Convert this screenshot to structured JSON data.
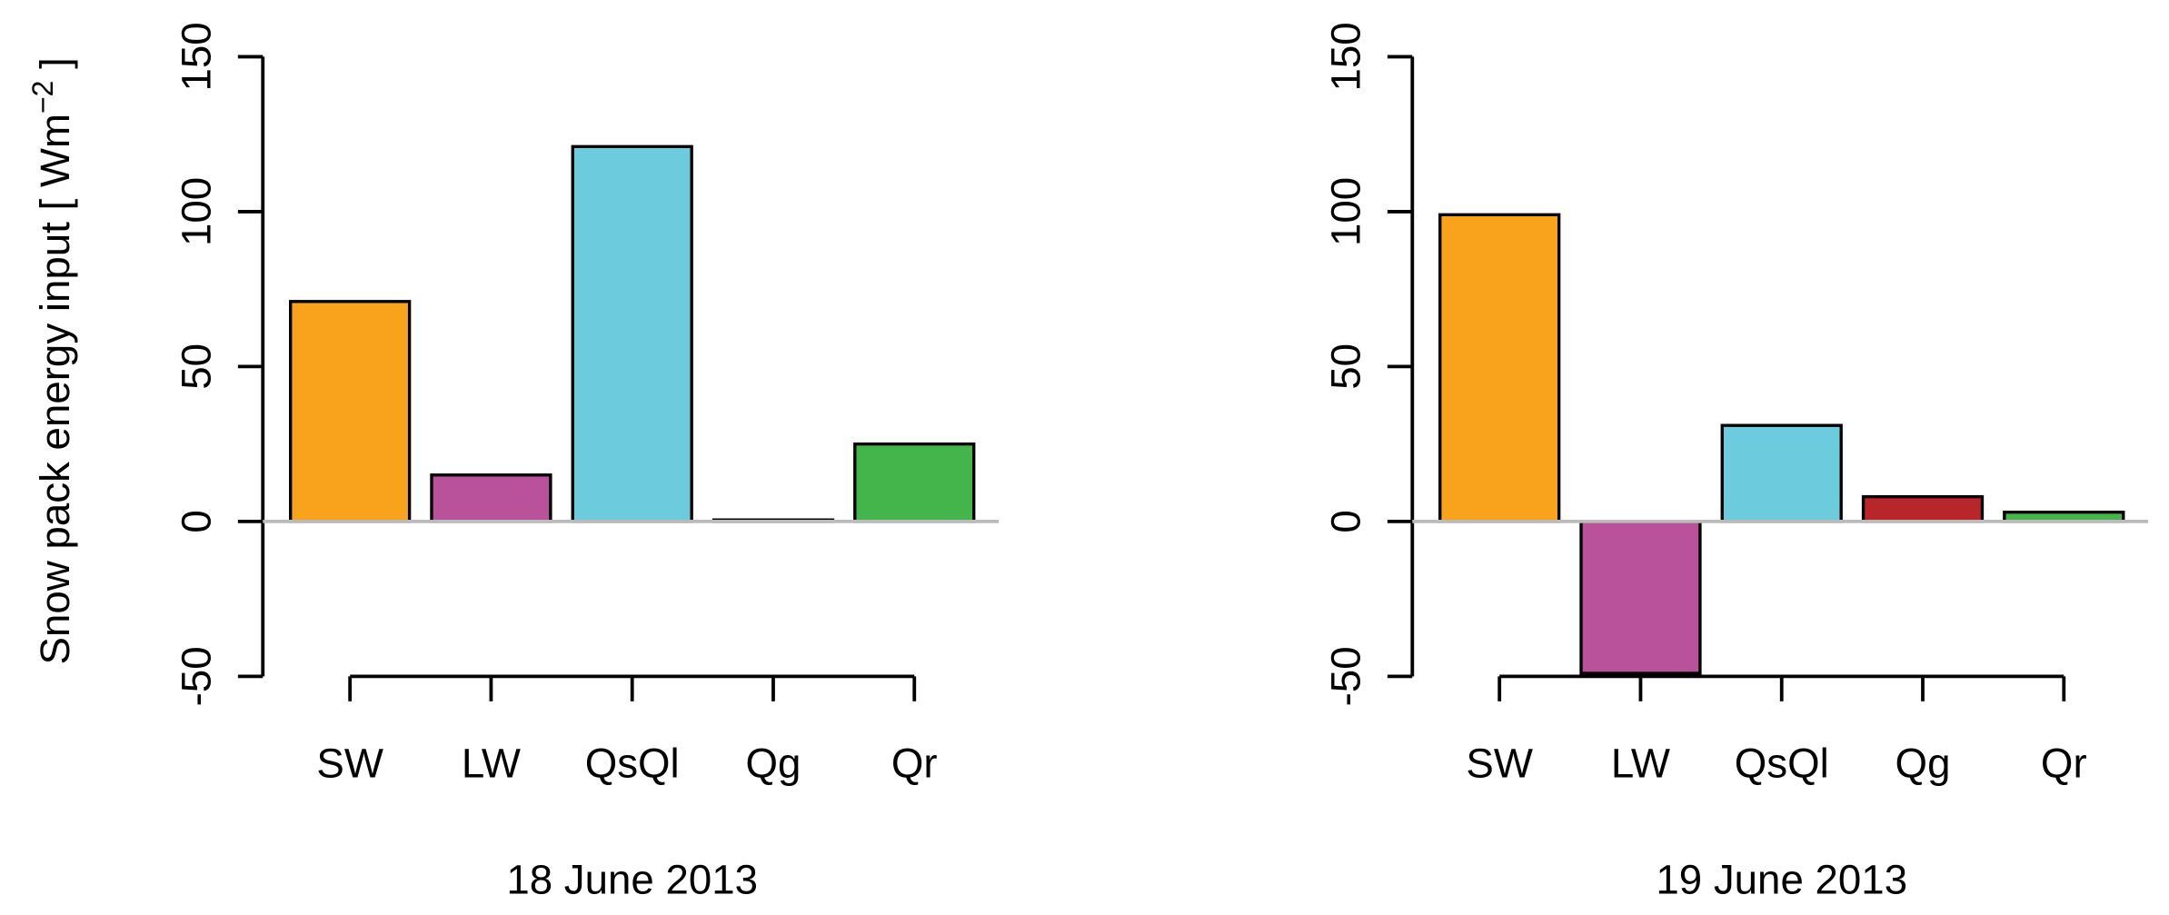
{
  "chart_data": [
    {
      "type": "bar",
      "xlabel": "18 June 2013",
      "ylabel": {
        "text": "Snow pack energy input [ Wm",
        "sup": "−2",
        "end": " ]"
      },
      "categories": [
        "SW",
        "LW",
        "QsQl",
        "Qg",
        "Qr"
      ],
      "values": [
        71,
        15,
        121,
        0.5,
        25
      ],
      "colors": [
        "#f8a31b",
        "#b9519b",
        "#6ccbdc",
        "#999999",
        "#44b54a"
      ],
      "ylim": [
        -50,
        150
      ],
      "yticks": [
        -50,
        0,
        50,
        100,
        150
      ]
    },
    {
      "type": "bar",
      "xlabel": "19 June 2013",
      "categories": [
        "SW",
        "LW",
        "QsQl",
        "Qg",
        "Qr"
      ],
      "values": [
        99,
        -49,
        31,
        8,
        3
      ],
      "colors": [
        "#f8a31b",
        "#b9519b",
        "#6ccbdc",
        "#b8262a",
        "#44b54a"
      ],
      "ylim": [
        -50,
        150
      ],
      "yticks": [
        -50,
        0,
        50,
        100,
        150
      ]
    }
  ]
}
